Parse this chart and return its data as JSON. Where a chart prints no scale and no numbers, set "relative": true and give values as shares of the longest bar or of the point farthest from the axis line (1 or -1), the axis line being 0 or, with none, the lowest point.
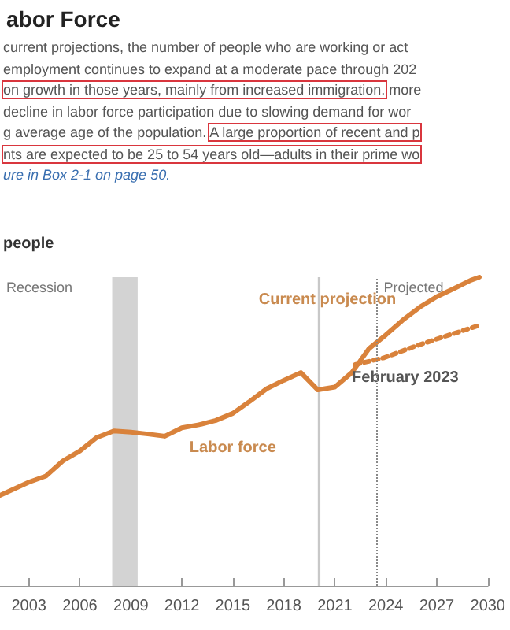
{
  "chart_data": {
    "type": "line",
    "title": "abor Force",
    "ylabel": "people",
    "annotations": [
      "current projections, the number of people who are working or act",
      "employment continues to expand at a moderate pace through 202",
      "on growth in those years, mainly from increased immigration.",
      "more",
      "decline in labor force participation due to slowing demand for wor",
      "g average age of the population.",
      "A large proportion of recent and p",
      "nts are expected to be 25 to 54 years old—adults in their prime wo",
      "ure in Box 2-1 on page 50.",
      {
        "text": "Current projection",
        "x": 2025.9,
        "y": 0.9
      }
    ],
    "relative": true,
    "xlim": [
      2001.3,
      2030
    ],
    "xticks": [
      2003,
      2006,
      2009,
      2012,
      2015,
      2018,
      2021,
      2024,
      2027,
      2030
    ],
    "series": [
      {
        "name": "Labor force",
        "color": "#d9823b",
        "line_style": "solid",
        "x": [
          2001.3,
          2003,
          2004,
          2005,
          2006,
          2007,
          2008,
          2009,
          2010,
          2011,
          2012,
          2013,
          2014,
          2015,
          2016,
          2017,
          2018,
          2019,
          2020,
          2021,
          2022,
          2023,
          2024,
          2025,
          2026,
          2027,
          2028,
          2029,
          2029.5
        ],
        "values": [
          0.293,
          0.336,
          0.356,
          0.405,
          0.437,
          0.481,
          0.502,
          0.498,
          0.492,
          0.485,
          0.512,
          0.522,
          0.536,
          0.559,
          0.598,
          0.639,
          0.666,
          0.691,
          0.635,
          0.644,
          0.691,
          0.768,
          0.813,
          0.861,
          0.903,
          0.937,
          0.963,
          0.99,
          1.0
        ]
      },
      {
        "name": "February 2023",
        "color": "#d9823b",
        "line_style": "dotted",
        "x": [
          2022.2,
          2023.9,
          2025.7,
          2027.4,
          2029.5
        ],
        "values": [
          0.717,
          0.739,
          0.776,
          0.807,
          0.844
        ]
      }
    ],
    "bands": [
      {
        "axis": "x",
        "from": 2007.9,
        "to": 2009.4,
        "label": "Recession",
        "color": "#d3d3d3"
      },
      {
        "axis": "x",
        "from": 2020.0,
        "to": 2020.15,
        "color": "#c8c8c8"
      }
    ],
    "ref_lines": [
      {
        "axis": "x",
        "value": 2023.5,
        "label": "Projected",
        "color": "#888888",
        "line_style": "dotted"
      }
    ],
    "marker": "none",
    "grid": false,
    "legend": false
  }
}
